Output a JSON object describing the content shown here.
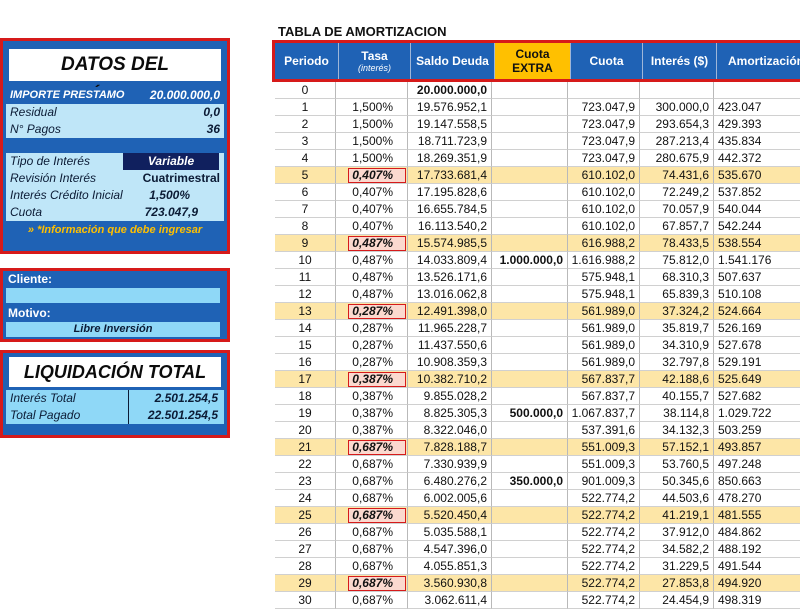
{
  "loan": {
    "title": "DATOS DEL PRÉSTAMO",
    "importe_label": "IMPORTE PRESTAMO",
    "importe_value": "20.000.000,0",
    "residual_label": "Residual",
    "residual_value": "0,0",
    "pagos_label": "N° Pagos",
    "pagos_value": "36",
    "tipo_label": "Tipo de Interés",
    "tipo_value": "Variable",
    "revision_label": "Revisión Interés",
    "revision_value": "Cuatrimestral",
    "credito_label": "Interés Crédito Inicial",
    "credito_value": "1,500%",
    "cuota_label": "Cuota",
    "cuota_value": "723.047,9",
    "note": "» *Información que debe ingresar"
  },
  "client": {
    "cliente_label": "Cliente:",
    "cliente_value": "",
    "motivo_label": "Motivo:",
    "motivo_value": "Libre Inversión"
  },
  "totals": {
    "title": "LIQUIDACIÓN TOTAL",
    "interes_label": "Interés Total",
    "interes_value": "2.501.254,5",
    "pagado_label": "Total Pagado",
    "pagado_value": "22.501.254,5"
  },
  "table": {
    "title": "TABLA DE AMORTIZACION",
    "headers": {
      "periodo": "Periodo",
      "tasa": "Tasa",
      "tasa_sub": "(interés)",
      "saldo": "Saldo Deuda",
      "extra1": "Cuota",
      "extra2": "EXTRA",
      "cuota": "Cuota",
      "interes": "Interés ($)",
      "amort": "Amortización"
    },
    "rows": [
      {
        "p": "0",
        "t": "",
        "s": "20.000.000,0",
        "e": "",
        "c": "",
        "i": "",
        "a": "",
        "hl": false,
        "rhl": false
      },
      {
        "p": "1",
        "t": "1,500%",
        "s": "19.576.952,1",
        "e": "",
        "c": "723.047,9",
        "i": "300.000,0",
        "a": "423.047",
        "hl": false,
        "rhl": false
      },
      {
        "p": "2",
        "t": "1,500%",
        "s": "19.147.558,5",
        "e": "",
        "c": "723.047,9",
        "i": "293.654,3",
        "a": "429.393",
        "hl": false,
        "rhl": false
      },
      {
        "p": "3",
        "t": "1,500%",
        "s": "18.711.723,9",
        "e": "",
        "c": "723.047,9",
        "i": "287.213,4",
        "a": "435.834",
        "hl": false,
        "rhl": false
      },
      {
        "p": "4",
        "t": "1,500%",
        "s": "18.269.351,9",
        "e": "",
        "c": "723.047,9",
        "i": "280.675,9",
        "a": "442.372",
        "hl": false,
        "rhl": false
      },
      {
        "p": "5",
        "t": "0,407%",
        "s": "17.733.681,4",
        "e": "",
        "c": "610.102,0",
        "i": "74.431,6",
        "a": "535.670",
        "hl": true,
        "rhl": true
      },
      {
        "p": "6",
        "t": "0,407%",
        "s": "17.195.828,6",
        "e": "",
        "c": "610.102,0",
        "i": "72.249,2",
        "a": "537.852",
        "hl": false,
        "rhl": false
      },
      {
        "p": "7",
        "t": "0,407%",
        "s": "16.655.784,5",
        "e": "",
        "c": "610.102,0",
        "i": "70.057,9",
        "a": "540.044",
        "hl": false,
        "rhl": false
      },
      {
        "p": "8",
        "t": "0,407%",
        "s": "16.113.540,2",
        "e": "",
        "c": "610.102,0",
        "i": "67.857,7",
        "a": "542.244",
        "hl": false,
        "rhl": false
      },
      {
        "p": "9",
        "t": "0,487%",
        "s": "15.574.985,5",
        "e": "",
        "c": "616.988,2",
        "i": "78.433,5",
        "a": "538.554",
        "hl": true,
        "rhl": true
      },
      {
        "p": "10",
        "t": "0,487%",
        "s": "14.033.809,4",
        "e": "1.000.000,0",
        "c": "1.616.988,2",
        "i": "75.812,0",
        "a": "1.541.176",
        "hl": false,
        "rhl": false
      },
      {
        "p": "11",
        "t": "0,487%",
        "s": "13.526.171,6",
        "e": "",
        "c": "575.948,1",
        "i": "68.310,3",
        "a": "507.637",
        "hl": false,
        "rhl": false
      },
      {
        "p": "12",
        "t": "0,487%",
        "s": "13.016.062,8",
        "e": "",
        "c": "575.948,1",
        "i": "65.839,3",
        "a": "510.108",
        "hl": false,
        "rhl": false
      },
      {
        "p": "13",
        "t": "0,287%",
        "s": "12.491.398,0",
        "e": "",
        "c": "561.989,0",
        "i": "37.324,2",
        "a": "524.664",
        "hl": true,
        "rhl": true
      },
      {
        "p": "14",
        "t": "0,287%",
        "s": "11.965.228,7",
        "e": "",
        "c": "561.989,0",
        "i": "35.819,7",
        "a": "526.169",
        "hl": false,
        "rhl": false
      },
      {
        "p": "15",
        "t": "0,287%",
        "s": "11.437.550,6",
        "e": "",
        "c": "561.989,0",
        "i": "34.310,9",
        "a": "527.678",
        "hl": false,
        "rhl": false
      },
      {
        "p": "16",
        "t": "0,287%",
        "s": "10.908.359,3",
        "e": "",
        "c": "561.989,0",
        "i": "32.797,8",
        "a": "529.191",
        "hl": false,
        "rhl": false
      },
      {
        "p": "17",
        "t": "0,387%",
        "s": "10.382.710,2",
        "e": "",
        "c": "567.837,7",
        "i": "42.188,6",
        "a": "525.649",
        "hl": true,
        "rhl": true
      },
      {
        "p": "18",
        "t": "0,387%",
        "s": "9.855.028,2",
        "e": "",
        "c": "567.837,7",
        "i": "40.155,7",
        "a": "527.682",
        "hl": false,
        "rhl": false
      },
      {
        "p": "19",
        "t": "0,387%",
        "s": "8.825.305,3",
        "e": "500.000,0",
        "c": "1.067.837,7",
        "i": "38.114,8",
        "a": "1.029.722",
        "hl": false,
        "rhl": false
      },
      {
        "p": "20",
        "t": "0,387%",
        "s": "8.322.046,0",
        "e": "",
        "c": "537.391,6",
        "i": "34.132,3",
        "a": "503.259",
        "hl": false,
        "rhl": false
      },
      {
        "p": "21",
        "t": "0,687%",
        "s": "7.828.188,7",
        "e": "",
        "c": "551.009,3",
        "i": "57.152,1",
        "a": "493.857",
        "hl": true,
        "rhl": true
      },
      {
        "p": "22",
        "t": "0,687%",
        "s": "7.330.939,9",
        "e": "",
        "c": "551.009,3",
        "i": "53.760,5",
        "a": "497.248",
        "hl": false,
        "rhl": false
      },
      {
        "p": "23",
        "t": "0,687%",
        "s": "6.480.276,2",
        "e": "350.000,0",
        "c": "901.009,3",
        "i": "50.345,6",
        "a": "850.663",
        "hl": false,
        "rhl": false
      },
      {
        "p": "24",
        "t": "0,687%",
        "s": "6.002.005,6",
        "e": "",
        "c": "522.774,2",
        "i": "44.503,6",
        "a": "478.270",
        "hl": false,
        "rhl": false
      },
      {
        "p": "25",
        "t": "0,687%",
        "s": "5.520.450,4",
        "e": "",
        "c": "522.774,2",
        "i": "41.219,1",
        "a": "481.555",
        "hl": true,
        "rhl": true
      },
      {
        "p": "26",
        "t": "0,687%",
        "s": "5.035.588,1",
        "e": "",
        "c": "522.774,2",
        "i": "37.912,0",
        "a": "484.862",
        "hl": false,
        "rhl": false
      },
      {
        "p": "27",
        "t": "0,687%",
        "s": "4.547.396,0",
        "e": "",
        "c": "522.774,2",
        "i": "34.582,2",
        "a": "488.192",
        "hl": false,
        "rhl": false
      },
      {
        "p": "28",
        "t": "0,687%",
        "s": "4.055.851,3",
        "e": "",
        "c": "522.774,2",
        "i": "31.229,5",
        "a": "491.544",
        "hl": false,
        "rhl": false
      },
      {
        "p": "29",
        "t": "0,687%",
        "s": "3.560.930,8",
        "e": "",
        "c": "522.774,2",
        "i": "27.853,8",
        "a": "494.920",
        "hl": true,
        "rhl": true
      },
      {
        "p": "30",
        "t": "0,687%",
        "s": "3.062.611,4",
        "e": "",
        "c": "522.774,2",
        "i": "24.454,9",
        "a": "498.319",
        "hl": false,
        "rhl": false
      }
    ]
  },
  "colors": {
    "panel_blue": "#1f62b5",
    "border_red": "#d61a1a",
    "light_cyan": "#bfe6f8",
    "extra_orange": "#ffc000",
    "row_highlight": "#fde6a7",
    "rate_highlight": "#fbd9cf",
    "dark_navy": "#10205e"
  }
}
